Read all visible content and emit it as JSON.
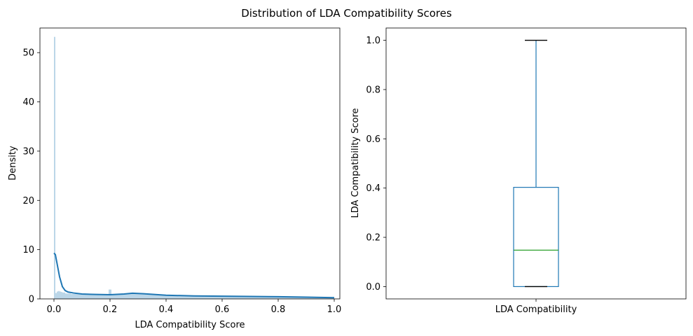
{
  "suptitle": "Distribution of LDA Compatibility Scores",
  "colors": {
    "kde_line": "#1f77b4",
    "hist_fill": "#1f77b4",
    "box": "#1f77b4",
    "median": "#2ca02c",
    "whisker_cap": "#000000"
  },
  "chart_data": [
    {
      "type": "histogram",
      "xlabel": "LDA Compatibility Score",
      "ylabel": "Density",
      "xlim": [
        -0.05,
        1.02
      ],
      "ylim": [
        0,
        55
      ],
      "xticks": [
        0.0,
        0.2,
        0.4,
        0.6,
        0.8,
        1.0
      ],
      "xtick_labels": [
        "0.0",
        "0.2",
        "0.4",
        "0.6",
        "0.8",
        "1.0"
      ],
      "yticks": [
        0,
        10,
        20,
        30,
        40,
        50
      ],
      "ytick_labels": [
        "0",
        "10",
        "20",
        "30",
        "40",
        "50"
      ],
      "grid": false,
      "hist_bins": [
        {
          "x0": 0.0,
          "x1": 0.005,
          "density": 53.2
        },
        {
          "x0": 0.005,
          "x1": 0.01,
          "density": 1.2
        },
        {
          "x0": 0.01,
          "x1": 0.015,
          "density": 1.5
        },
        {
          "x0": 0.015,
          "x1": 0.02,
          "density": 1.6
        },
        {
          "x0": 0.02,
          "x1": 0.025,
          "density": 1.5
        },
        {
          "x0": 0.025,
          "x1": 0.03,
          "density": 1.4
        },
        {
          "x0": 0.03,
          "x1": 0.04,
          "density": 1.3
        },
        {
          "x0": 0.04,
          "x1": 0.06,
          "density": 1.1
        },
        {
          "x0": 0.06,
          "x1": 0.1,
          "density": 1.0
        },
        {
          "x0": 0.1,
          "x1": 0.15,
          "density": 0.9
        },
        {
          "x0": 0.15,
          "x1": 0.195,
          "density": 0.85
        },
        {
          "x0": 0.195,
          "x1": 0.205,
          "density": 1.9
        },
        {
          "x0": 0.205,
          "x1": 0.25,
          "density": 0.95
        },
        {
          "x0": 0.25,
          "x1": 0.3,
          "density": 1.1
        },
        {
          "x0": 0.3,
          "x1": 0.35,
          "density": 1.0
        },
        {
          "x0": 0.35,
          "x1": 0.4,
          "density": 0.85
        },
        {
          "x0": 0.4,
          "x1": 0.5,
          "density": 0.7
        },
        {
          "x0": 0.5,
          "x1": 0.6,
          "density": 0.6
        },
        {
          "x0": 0.6,
          "x1": 0.7,
          "density": 0.55
        },
        {
          "x0": 0.7,
          "x1": 0.8,
          "density": 0.45
        },
        {
          "x0": 0.8,
          "x1": 0.9,
          "density": 0.35
        },
        {
          "x0": 0.9,
          "x1": 1.0,
          "density": 0.25
        }
      ],
      "kde": {
        "x": [
          0.0,
          0.005,
          0.01,
          0.02,
          0.03,
          0.04,
          0.05,
          0.07,
          0.1,
          0.15,
          0.2,
          0.25,
          0.28,
          0.32,
          0.4,
          0.5,
          0.6,
          0.7,
          0.8,
          0.9,
          1.0
        ],
        "y": [
          9.3,
          9.0,
          7.5,
          4.5,
          2.5,
          1.7,
          1.4,
          1.2,
          1.0,
          0.9,
          0.85,
          1.0,
          1.15,
          1.05,
          0.75,
          0.6,
          0.55,
          0.5,
          0.45,
          0.35,
          0.25
        ]
      }
    },
    {
      "type": "box",
      "xlabel": "",
      "ylabel": "LDA Compatibility Score",
      "categories": [
        "LDA Compatibility"
      ],
      "ylim": [
        -0.05,
        1.05
      ],
      "yticks": [
        0.0,
        0.2,
        0.4,
        0.6,
        0.8,
        1.0
      ],
      "ytick_labels": [
        "0.0",
        "0.2",
        "0.4",
        "0.6",
        "0.8",
        "1.0"
      ],
      "grid": false,
      "box": {
        "whisker_low": 0.0,
        "q1": 0.0,
        "median": 0.148,
        "q3": 0.403,
        "whisker_high": 1.0
      }
    }
  ]
}
